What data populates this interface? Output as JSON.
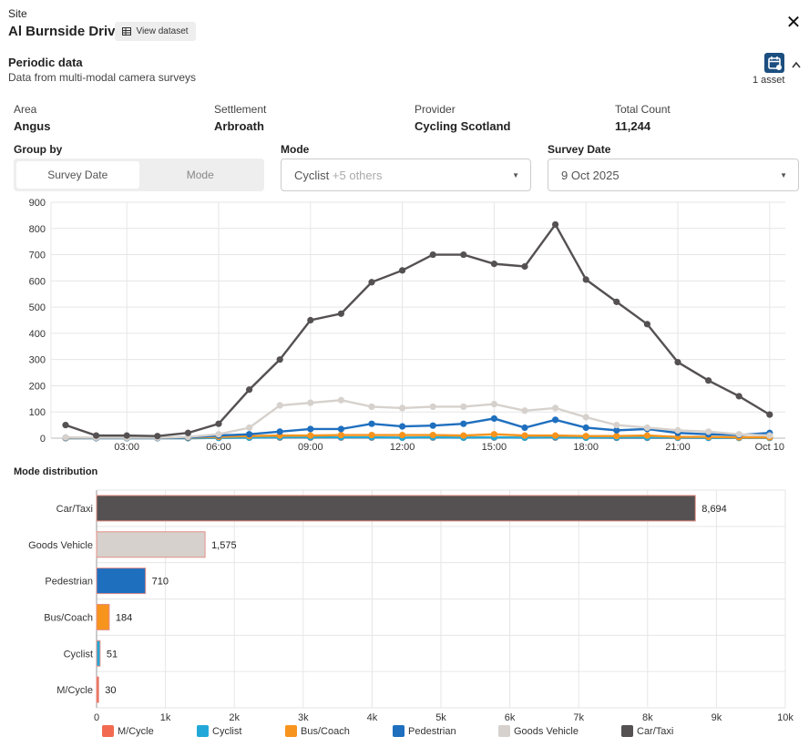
{
  "header": {
    "site_label": "Site",
    "site_name": "Al Burnside Drive",
    "view_dataset": "View dataset",
    "close": "✕"
  },
  "periodic": {
    "title": "Periodic data",
    "subtitle": "Data from multi-modal camera surveys",
    "asset_count": "1 asset",
    "chevron": "^"
  },
  "meta": [
    {
      "label": "Area",
      "value": "Angus"
    },
    {
      "label": "Settlement",
      "value": "Arbroath"
    },
    {
      "label": "Provider",
      "value": "Cycling Scotland"
    },
    {
      "label": "Total Count",
      "value": "11,244"
    }
  ],
  "controls": {
    "group_by_label": "Group by",
    "group_by_options": [
      "Survey Date",
      "Mode"
    ],
    "group_by_selected": "Survey Date",
    "mode_label": "Mode",
    "mode_value": "Cyclist",
    "mode_extra": "+5 others",
    "survey_date_label": "Survey Date",
    "survey_date_value": "9 Oct 2025"
  },
  "colors": {
    "mcycle": "#f26b50",
    "cyclist": "#22a8d8",
    "bus": "#f7941d",
    "pedestrian": "#1f6fbf",
    "goods": "#d6d1cc",
    "car": "#555152"
  },
  "chart_data": [
    {
      "type": "line",
      "x_ticks": [
        "03:00",
        "06:00",
        "09:00",
        "12:00",
        "15:00",
        "18:00",
        "21:00",
        "Oct 10"
      ],
      "ylim": [
        0,
        900
      ],
      "y_ticks": [
        0,
        100,
        200,
        300,
        400,
        500,
        600,
        700,
        800,
        900
      ],
      "x": [
        "01:00",
        "02:00",
        "03:00",
        "04:00",
        "05:00",
        "06:00",
        "07:00",
        "08:00",
        "09:00",
        "10:00",
        "11:00",
        "12:00",
        "13:00",
        "14:00",
        "15:00",
        "16:00",
        "17:00",
        "18:00",
        "19:00",
        "20:00",
        "21:00",
        "22:00",
        "23:00",
        "00:00",
        "01:00"
      ],
      "series": [
        {
          "name": "Car/Taxi",
          "color": "#555152",
          "values": [
            50,
            10,
            10,
            8,
            20,
            55,
            185,
            300,
            450,
            475,
            595,
            640,
            700,
            700,
            665,
            655,
            815,
            605,
            520,
            435,
            290,
            220,
            160,
            90,
            null
          ]
        },
        {
          "name": "Goods Vehicle",
          "color": "#d6d1cc",
          "values": [
            3,
            2,
            2,
            2,
            5,
            15,
            40,
            125,
            135,
            145,
            120,
            115,
            120,
            120,
            130,
            105,
            115,
            80,
            50,
            40,
            30,
            25,
            15,
            10,
            null
          ]
        },
        {
          "name": "Pedestrian",
          "color": "#1f6fbf",
          "values": [
            2,
            1,
            1,
            1,
            3,
            10,
            15,
            25,
            35,
            35,
            55,
            45,
            48,
            55,
            75,
            40,
            70,
            40,
            30,
            35,
            20,
            15,
            12,
            20,
            null
          ]
        },
        {
          "name": "Bus/Coach",
          "color": "#f7941d",
          "values": [
            1,
            1,
            1,
            1,
            2,
            5,
            8,
            10,
            10,
            12,
            12,
            12,
            12,
            10,
            15,
            10,
            10,
            8,
            8,
            10,
            5,
            5,
            3,
            3,
            null
          ]
        },
        {
          "name": "Cyclist",
          "color": "#22a8d8",
          "values": [
            0,
            0,
            0,
            0,
            0,
            1,
            2,
            3,
            3,
            3,
            3,
            2,
            3,
            2,
            3,
            2,
            3,
            2,
            2,
            2,
            2,
            1,
            1,
            1,
            null
          ]
        },
        {
          "name": "M/Cycle",
          "color": "#f26b50",
          "values": [
            0,
            0,
            0,
            0,
            0,
            1,
            2,
            2,
            2,
            2,
            2,
            2,
            2,
            2,
            2,
            2,
            2,
            2,
            1,
            1,
            1,
            1,
            1,
            1,
            null
          ]
        }
      ]
    },
    {
      "type": "bar",
      "orientation": "horizontal",
      "title": "Mode distribution",
      "categories": [
        "Car/Taxi",
        "Goods Vehicle",
        "Pedestrian",
        "Bus/Coach",
        "Cyclist",
        "M/Cycle"
      ],
      "values": [
        8694,
        1575,
        710,
        184,
        51,
        30
      ],
      "value_labels": [
        "8,694",
        "1,575",
        "710",
        "184",
        "51",
        "30"
      ],
      "colors": [
        "#555152",
        "#d6d1cc",
        "#1f6fbf",
        "#f7941d",
        "#22a8d8",
        "#f26b50"
      ],
      "xlim": [
        0,
        10000
      ],
      "x_ticks": [
        "0",
        "1k",
        "2k",
        "3k",
        "4k",
        "5k",
        "6k",
        "7k",
        "8k",
        "9k",
        "10k"
      ],
      "legend": [
        "M/Cycle",
        "Cyclist",
        "Bus/Coach",
        "Pedestrian",
        "Goods Vehicle",
        "Car/Taxi"
      ],
      "legend_colors": [
        "#f26b50",
        "#22a8d8",
        "#f7941d",
        "#1f6fbf",
        "#d6d1cc",
        "#555152"
      ]
    }
  ]
}
